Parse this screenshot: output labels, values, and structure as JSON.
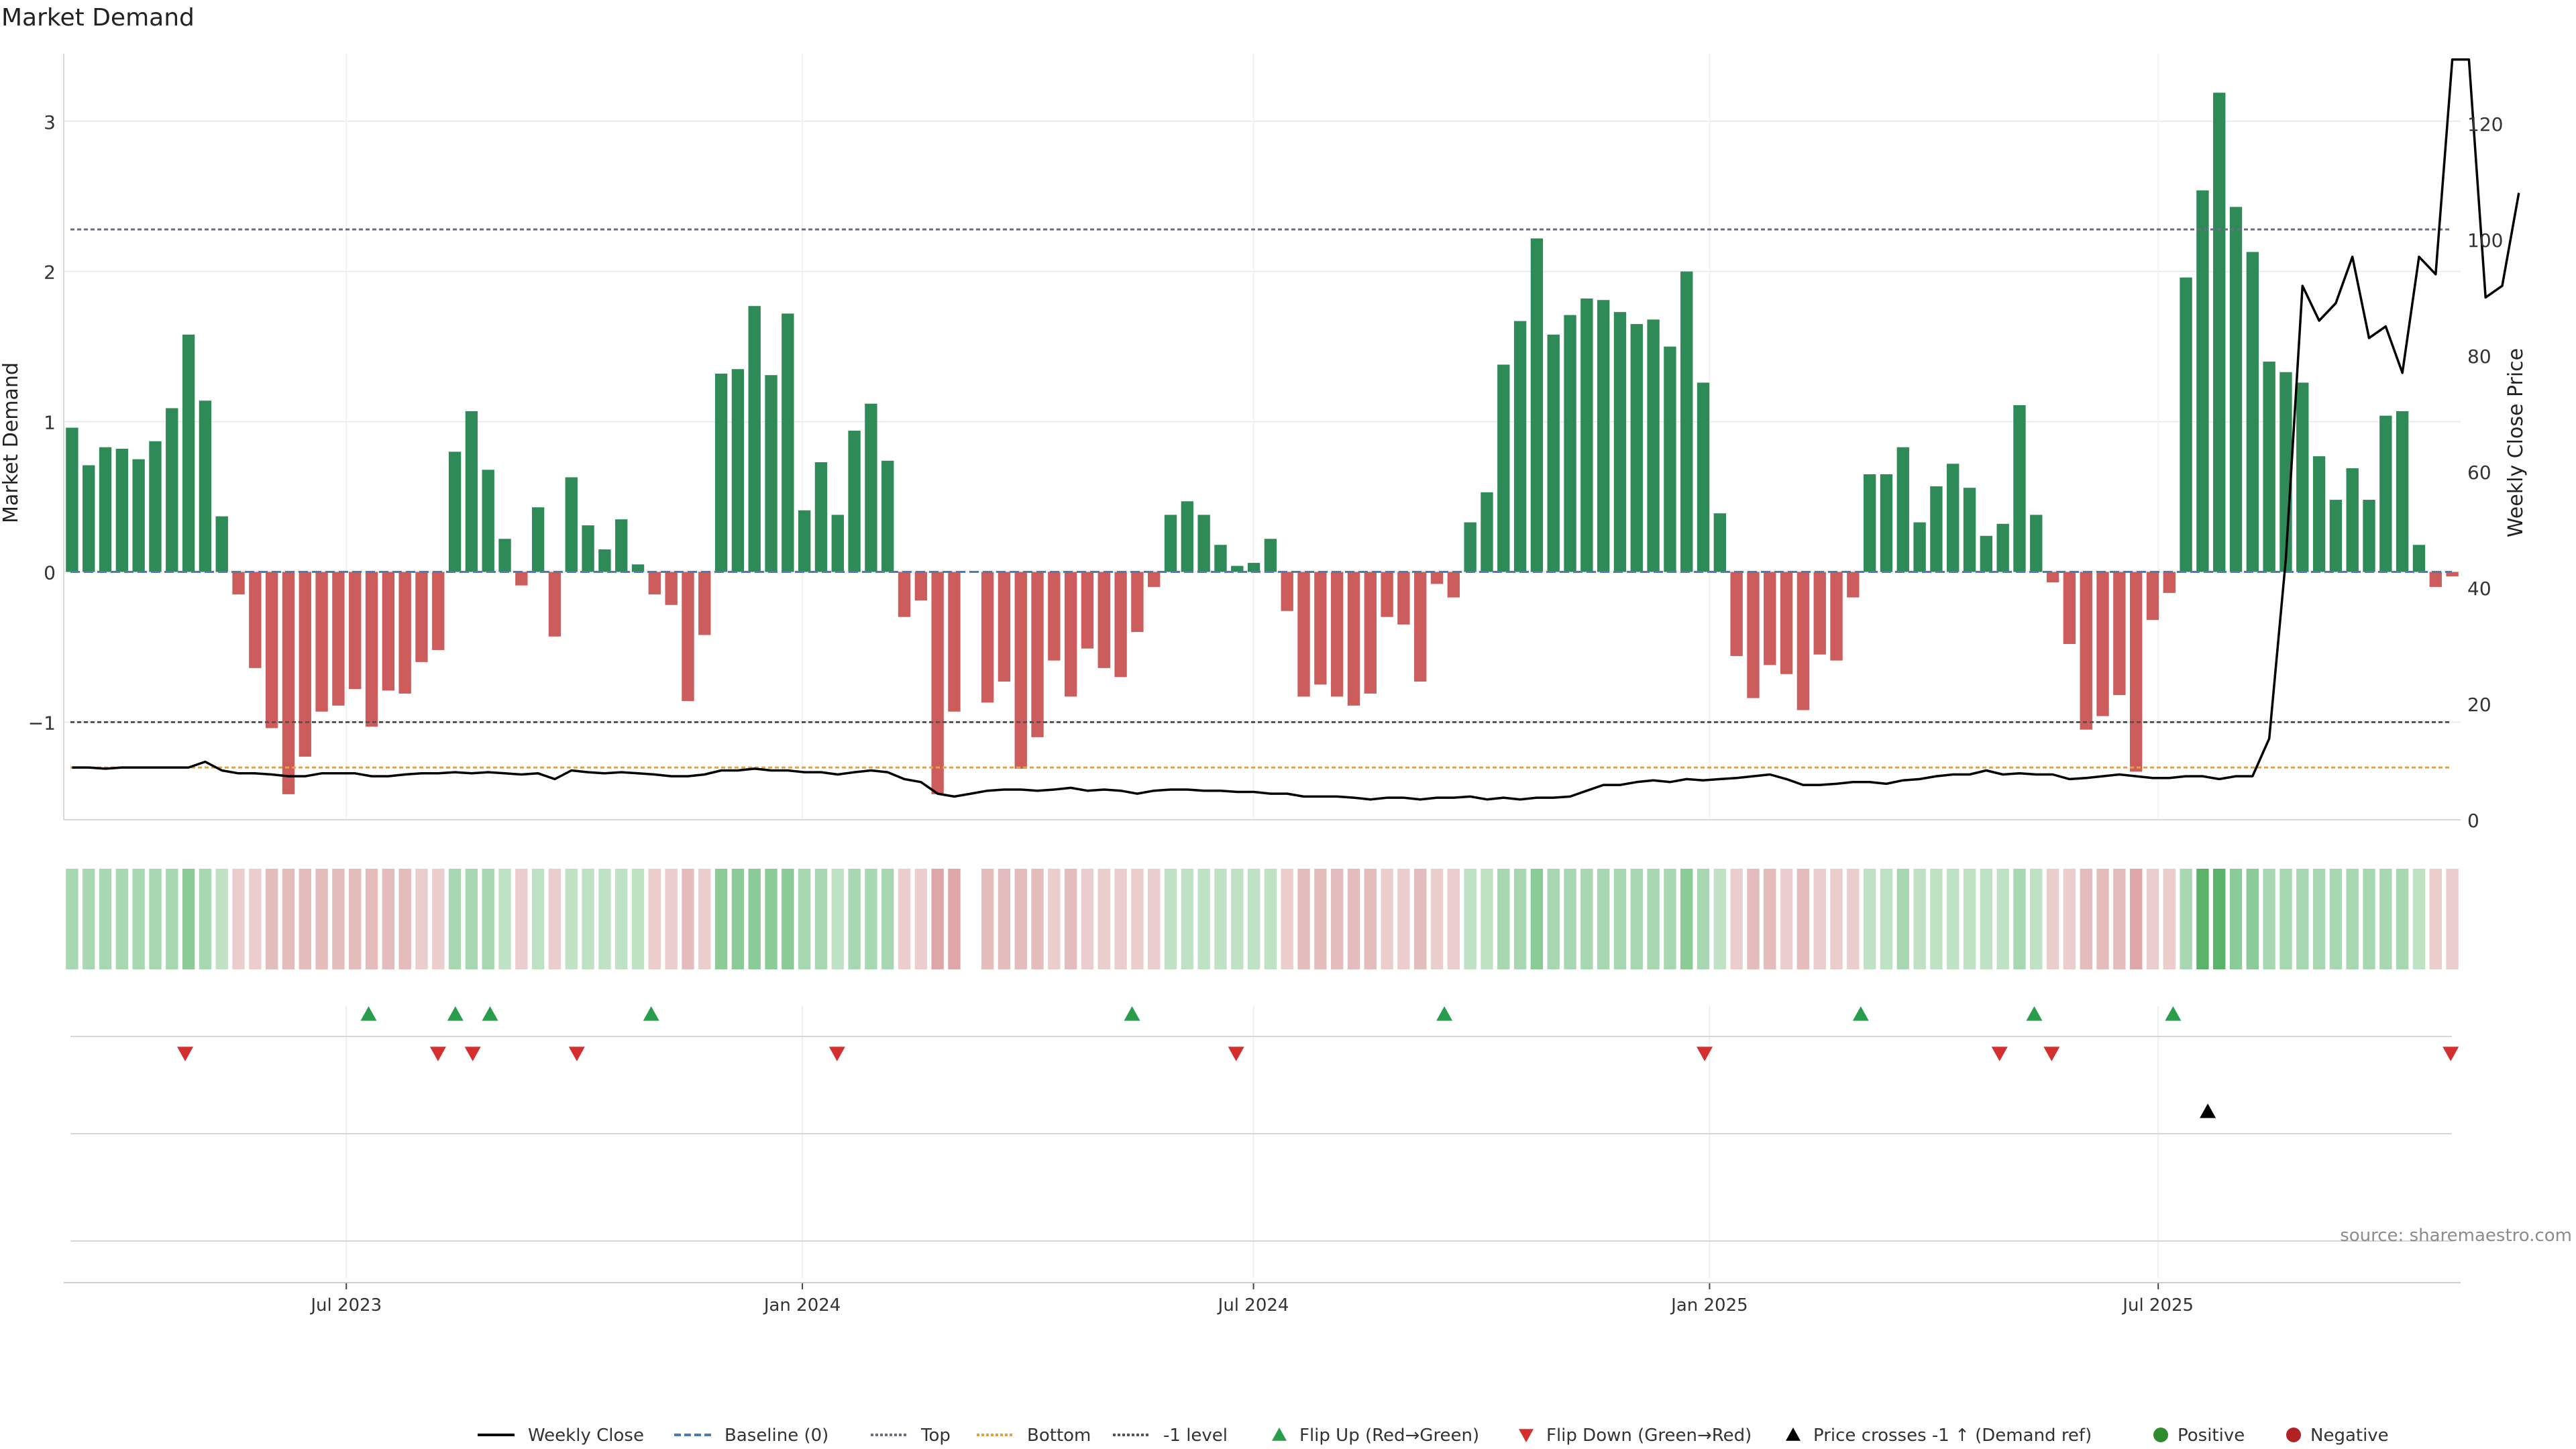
{
  "chart_data": {
    "type": "bar",
    "title": "Market Demand",
    "ylabel": "Market Demand",
    "y2label": "Weekly Close Price",
    "ylim": [
      -1.65,
      3.45
    ],
    "y2lim": [
      0,
      132
    ],
    "yticks": [
      3,
      2,
      1,
      0,
      -1
    ],
    "ytick_labels": [
      "3",
      "2",
      "1",
      "0",
      "−1"
    ],
    "y2ticks": [
      0,
      20,
      40,
      60,
      80,
      100,
      120
    ],
    "x_start": "2023-03-09",
    "x_end": "2025-10-31",
    "xticks": [
      {
        "date": "2023-07-01",
        "label": "Jul 2023"
      },
      {
        "date": "2024-01-01",
        "label": "Jan 2024"
      },
      {
        "date": "2024-07-01",
        "label": "Jul 2024"
      },
      {
        "date": "2025-01-01",
        "label": "Jan 2025"
      },
      {
        "date": "2025-07-01",
        "label": "Jul 2025"
      }
    ],
    "reference_levels": {
      "top": 2.28,
      "bottom": 9,
      "minus_one": -1,
      "baseline": 0
    },
    "demand": [
      0.96,
      0.71,
      0.83,
      0.82,
      0.75,
      0.87,
      1.09,
      1.58,
      1.14,
      0.37,
      -0.15,
      -0.64,
      -1.04,
      -1.48,
      -1.23,
      -0.93,
      -0.89,
      -0.78,
      -1.03,
      -0.79,
      -0.81,
      -0.6,
      -0.52,
      0.8,
      1.07,
      0.68,
      0.22,
      -0.09,
      0.43,
      -0.43,
      0.63,
      0.31,
      0.15,
      0.35,
      0.05,
      -0.15,
      -0.22,
      -0.86,
      -0.42,
      1.32,
      1.35,
      1.77,
      1.31,
      1.72,
      0.41,
      0.73,
      0.38,
      0.94,
      1.12,
      0.74,
      -0.3,
      -0.19,
      -1.48,
      -0.93,
      0,
      -0.87,
      -0.73,
      -1.31,
      -1.1,
      -0.59,
      -0.83,
      -0.51,
      -0.64,
      -0.7,
      -0.4,
      -0.1,
      0.38,
      0.47,
      0.38,
      0.18,
      0.04,
      0.06,
      0.22,
      -0.26,
      -0.83,
      -0.75,
      -0.83,
      -0.89,
      -0.81,
      -0.3,
      -0.35,
      -0.73,
      -0.08,
      -0.17,
      0.33,
      0.53,
      1.38,
      1.67,
      2.22,
      1.58,
      1.71,
      1.82,
      1.81,
      1.73,
      1.65,
      1.68,
      1.5,
      2.0,
      1.26,
      0.39,
      -0.56,
      -0.84,
      -0.62,
      -0.68,
      -0.92,
      -0.55,
      -0.59,
      -0.17,
      0.65,
      0.65,
      0.83,
      0.33,
      0.57,
      0.72,
      0.56,
      0.24,
      0.32,
      1.11,
      0.38,
      -0.07,
      -0.48,
      -1.05,
      -0.96,
      -0.82,
      -1.33,
      -0.32,
      -0.14,
      1.96,
      2.54,
      3.19,
      2.43,
      2.13,
      1.4,
      1.33,
      1.26,
      0.77,
      0.48,
      0.69,
      0.48,
      1.04,
      1.07,
      0.18,
      -0.1,
      -0.03
    ],
    "price": [
      9,
      9,
      8.8,
      9,
      9,
      9,
      9,
      9,
      10,
      8.5,
      8,
      8,
      7.8,
      7.5,
      7.5,
      8,
      8,
      8,
      7.5,
      7.5,
      7.8,
      8,
      8,
      8.2,
      8,
      8.2,
      8,
      7.8,
      8,
      7,
      8.5,
      8.2,
      8,
      8.2,
      8,
      7.8,
      7.5,
      7.5,
      7.8,
      8.5,
      8.5,
      8.8,
      8.5,
      8.5,
      8.2,
      8.2,
      7.8,
      8.2,
      8.5,
      8.2,
      7,
      6.5,
      4.5,
      4,
      4.5,
      5,
      5.2,
      5.2,
      5,
      5.2,
      5.5,
      5,
      5.2,
      5,
      4.5,
      5,
      5.2,
      5.2,
      5,
      5,
      4.8,
      4.8,
      4.5,
      4.5,
      4,
      4,
      4,
      3.8,
      3.5,
      3.8,
      3.8,
      3.5,
      3.8,
      3.8,
      4,
      3.5,
      3.8,
      3.5,
      3.8,
      3.8,
      4,
      5,
      6,
      6,
      6.5,
      6.8,
      6.5,
      7,
      6.8,
      7,
      7.2,
      7.5,
      7.8,
      7,
      6,
      6,
      6.2,
      6.5,
      6.5,
      6.2,
      6.8,
      7,
      7.5,
      7.8,
      7.8,
      8.5,
      7.8,
      8,
      7.8,
      7.8,
      7,
      7.2,
      7.5,
      7.8,
      7.5,
      7.2,
      7.2,
      7.5,
      7.5,
      7,
      7.5,
      7.5,
      14,
      45,
      92,
      86,
      89,
      97,
      83,
      85,
      77,
      97,
      94,
      131,
      131,
      90,
      92,
      108
    ],
    "strength": [
      2,
      2,
      2,
      2,
      2,
      2,
      2,
      3,
      2,
      1,
      1,
      1,
      2,
      2,
      2,
      2,
      2,
      2,
      2,
      2,
      2,
      1,
      1,
      2,
      2,
      2,
      1,
      1,
      1,
      1,
      1,
      1,
      1,
      1,
      1,
      1,
      1,
      2,
      1,
      3,
      3,
      3,
      3,
      3,
      2,
      2,
      1,
      2,
      2,
      2,
      1,
      1,
      3,
      3,
      0,
      2,
      2,
      2,
      2,
      1,
      2,
      1,
      1,
      1,
      1,
      1,
      1,
      1,
      1,
      1,
      1,
      1,
      1,
      1,
      2,
      2,
      2,
      2,
      2,
      1,
      1,
      2,
      1,
      1,
      1,
      1,
      2,
      2,
      3,
      2,
      2,
      2,
      2,
      2,
      2,
      2,
      2,
      3,
      2,
      1,
      1,
      2,
      2,
      1,
      2,
      1,
      1,
      1,
      1,
      1,
      2,
      1,
      1,
      1,
      1,
      1,
      1,
      2,
      1,
      1,
      1,
      2,
      2,
      2,
      3,
      1,
      1,
      2,
      4,
      4,
      3,
      3,
      2,
      2,
      2,
      2,
      2,
      2,
      2,
      2,
      2,
      1,
      1,
      1
    ],
    "flip_up_dates": [
      "2023-07-10",
      "2023-08-14",
      "2023-08-28",
      "2023-11-01",
      "2024-05-13",
      "2024-09-16",
      "2025-03-03",
      "2025-05-12",
      "2025-07-07"
    ],
    "flip_down_dates": [
      "2023-04-27",
      "2023-08-07",
      "2023-08-21",
      "2023-10-02",
      "2024-01-15",
      "2024-06-24",
      "2024-12-30",
      "2025-04-28",
      "2025-05-19",
      "2025-10-27"
    ],
    "price_cross_dates": [
      "2025-07-21"
    ],
    "legend": [
      {
        "label": "Weekly Close",
        "kind": "line",
        "color": "#000000",
        "dash": ""
      },
      {
        "label": "Baseline (0)",
        "kind": "line",
        "color": "#4a7bb7",
        "dash": "10,5"
      },
      {
        "label": "Top",
        "kind": "line",
        "color": "#6b6b8a",
        "dash": "4,3"
      },
      {
        "label": "Bottom",
        "kind": "line",
        "color": "#e6a040",
        "dash": "4,3"
      },
      {
        "label": "-1 level",
        "kind": "line",
        "color": "#555555",
        "dash": "4,3"
      },
      {
        "label": "Flip Up (Red→Green)",
        "kind": "tri-up",
        "color": "#2a9d4c"
      },
      {
        "label": "Flip Down (Green→Red)",
        "kind": "tri-down",
        "color": "#d42f2f"
      },
      {
        "label": "Price crosses -1 ↑ (Demand ref)",
        "kind": "tri-up",
        "color": "#000000"
      },
      {
        "label": "Positive",
        "kind": "dot",
        "color": "#2e8b2e"
      },
      {
        "label": "Negative",
        "kind": "dot",
        "color": "#b22222"
      }
    ],
    "source": "source: sharemaestro.com"
  },
  "colors": {
    "positive_bar": "#2e8b57",
    "negative_bar": "#cd5c5c",
    "strip_positive": [
      "#d3ecd7",
      "#bfe2c5",
      "#a8d8b1",
      "#8acb97",
      "#5bb26b"
    ],
    "strip_negative": [
      "#f1dcdc",
      "#eccdcd",
      "#e5bcbc",
      "#dea6a6",
      "#d48f8f"
    ],
    "flip_up": "#2a9d4c",
    "flip_down": "#d42f2f",
    "grid": "#ececec"
  }
}
